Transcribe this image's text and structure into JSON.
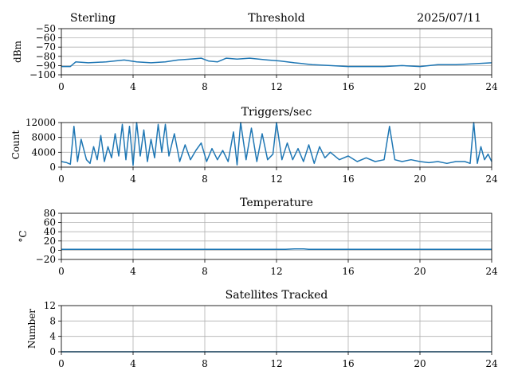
{
  "header": {
    "station": "Sterling",
    "date": "2025/07/11"
  },
  "colors": {
    "series": "#1f77b4",
    "grid": "#b0b0b0"
  },
  "chart_data": [
    {
      "type": "line",
      "title": "Threshold",
      "ylabel": "dBm",
      "xlim": [
        0,
        24
      ],
      "ylim": [
        -100,
        -50
      ],
      "xticks": [
        0,
        4,
        8,
        12,
        16,
        20,
        24
      ],
      "yticks": [
        -100,
        -90,
        -80,
        -70,
        -60,
        -50
      ],
      "grid": true,
      "x": [
        0,
        0.5,
        0.8,
        1.5,
        2.5,
        3.5,
        4.2,
        5,
        5.8,
        6.5,
        7.2,
        7.8,
        8.2,
        8.7,
        9.2,
        9.8,
        10.5,
        11,
        11.5,
        12.2,
        13,
        14,
        15,
        16,
        17,
        18,
        19,
        20,
        21,
        22,
        23,
        24
      ],
      "values": [
        -91,
        -91,
        -86,
        -87,
        -86,
        -84,
        -86,
        -87,
        -86,
        -84,
        -83,
        -82,
        -85,
        -86,
        -82,
        -83,
        -82,
        -83,
        -84,
        -85,
        -87,
        -89,
        -90,
        -91,
        -91,
        -91,
        -90,
        -91,
        -89,
        -89,
        -88,
        -87
      ]
    },
    {
      "type": "line",
      "title": "Triggers/sec",
      "ylabel": "Count",
      "xlim": [
        0,
        24
      ],
      "ylim": [
        0,
        12000
      ],
      "xticks": [
        0,
        4,
        8,
        12,
        16,
        20,
        24
      ],
      "yticks": [
        0,
        4000,
        8000,
        12000
      ],
      "grid": true,
      "x": [
        0,
        0.3,
        0.5,
        0.7,
        0.9,
        1.1,
        1.4,
        1.6,
        1.8,
        2.0,
        2.2,
        2.4,
        2.6,
        2.8,
        3.0,
        3.2,
        3.4,
        3.6,
        3.8,
        4.0,
        4.2,
        4.4,
        4.6,
        4.8,
        5.0,
        5.2,
        5.4,
        5.6,
        5.8,
        6.0,
        6.3,
        6.6,
        6.9,
        7.2,
        7.5,
        7.8,
        8.1,
        8.4,
        8.7,
        9.0,
        9.3,
        9.6,
        9.8,
        10.0,
        10.3,
        10.6,
        10.9,
        11.2,
        11.5,
        11.8,
        12.0,
        12.3,
        12.6,
        12.9,
        13.2,
        13.5,
        13.8,
        14.1,
        14.4,
        14.7,
        15.0,
        15.5,
        16.0,
        16.5,
        17.0,
        17.5,
        18.0,
        18.3,
        18.6,
        19.0,
        19.5,
        20.0,
        20.5,
        21.0,
        21.5,
        22.0,
        22.5,
        22.8,
        23.0,
        23.2,
        23.4,
        23.6,
        23.8,
        24.0
      ],
      "values": [
        1500,
        1200,
        800,
        11000,
        1500,
        7500,
        2000,
        1000,
        5500,
        2000,
        8500,
        1500,
        5500,
        2500,
        9000,
        3000,
        11500,
        2000,
        11000,
        500,
        12000,
        3000,
        10000,
        1500,
        7500,
        2500,
        11500,
        4000,
        11500,
        3000,
        9000,
        1500,
        6000,
        2000,
        4500,
        6500,
        1500,
        5000,
        2000,
        4500,
        1500,
        9500,
        600,
        12000,
        2000,
        10500,
        1500,
        9000,
        2000,
        3500,
        12500,
        2000,
        6500,
        2000,
        5000,
        1500,
        6000,
        1000,
        5500,
        2500,
        4000,
        2000,
        3000,
        1500,
        2500,
        1500,
        2000,
        11000,
        2000,
        1500,
        2000,
        1500,
        1200,
        1500,
        1000,
        1500,
        1500,
        1000,
        12000,
        1000,
        5500,
        2000,
        3500,
        1500
      ]
    },
    {
      "type": "line",
      "title": "Temperature",
      "ylabel": "°C",
      "xlim": [
        0,
        24
      ],
      "ylim": [
        -20,
        80
      ],
      "xticks": [
        0,
        4,
        8,
        12,
        16,
        20,
        24
      ],
      "yticks": [
        -20,
        0,
        20,
        40,
        60,
        80
      ],
      "grid": true,
      "x": [
        0,
        4,
        8,
        12,
        12.5,
        13,
        13.5,
        13.8,
        14,
        16,
        20,
        24
      ],
      "values": [
        2,
        2,
        2,
        2,
        2,
        3,
        3,
        2,
        2,
        2,
        2,
        2
      ]
    },
    {
      "type": "line",
      "title": "Satellites Tracked",
      "ylabel": "Number",
      "xlim": [
        0,
        24
      ],
      "ylim": [
        0,
        12
      ],
      "xticks": [
        0,
        4,
        8,
        12,
        16,
        20,
        24
      ],
      "yticks": [
        0,
        4,
        8,
        12
      ],
      "grid": true,
      "x": [
        0,
        24
      ],
      "values": [
        0,
        0
      ]
    }
  ]
}
